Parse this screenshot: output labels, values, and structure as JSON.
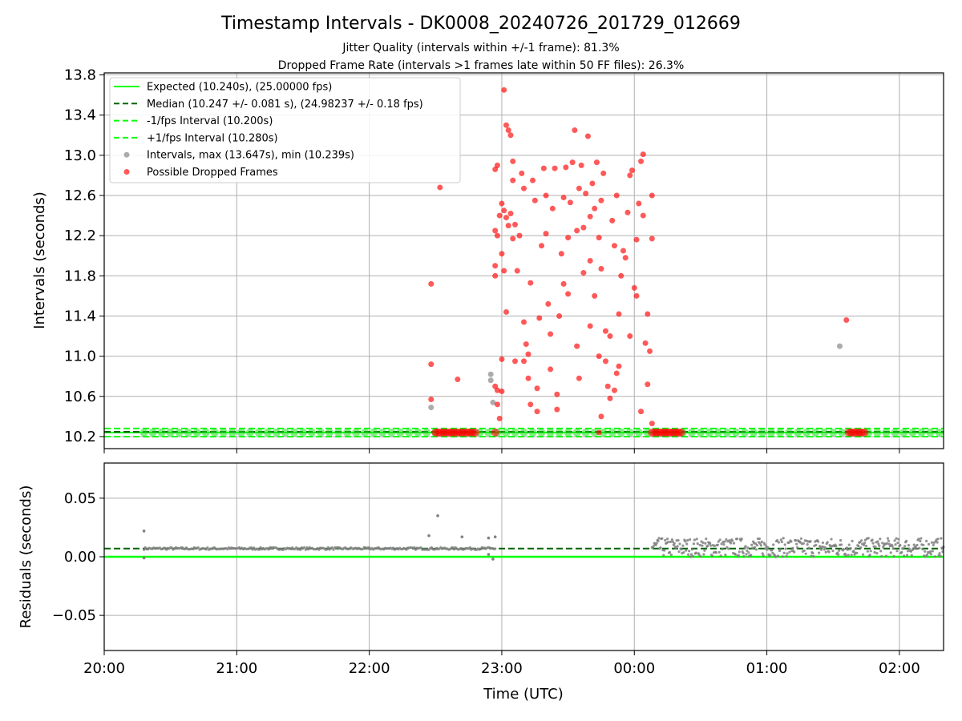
{
  "chart_data": [
    {
      "type": "scatter",
      "title": "Timestamp Intervals - DK0008_20240726_201729_012669",
      "subtitle_lines": [
        "Jitter Quality (intervals within +/-1 frame): 81.3%",
        "Dropped Frame Rate (intervals >1 frames late within 50 FF files): 26.3%"
      ],
      "xlabel": "",
      "ylabel": "Intervals (seconds)",
      "xlim": [
        "20:00",
        "02:20"
      ],
      "ylim": [
        10.08,
        13.82
      ],
      "yticks": [
        10.2,
        10.6,
        11.0,
        11.4,
        11.8,
        12.2,
        12.6,
        13.0,
        13.4,
        13.8
      ],
      "ytick_labels": [
        "10.2",
        "10.6",
        "11.0",
        "11.4",
        "11.8",
        "12.2",
        "12.6",
        "13.0",
        "13.4",
        "13.8"
      ],
      "grid": true,
      "legend_position": "upper-left",
      "series": [
        {
          "name": "Expected (10.240s), (25.00000 fps)",
          "kind": "hline",
          "y": 10.24,
          "style": "solid",
          "color": "#00ff00"
        },
        {
          "name": "Median (10.247 +/- 0.081 s), (24.98237 +/- 0.18 fps)",
          "kind": "hline",
          "y": 10.247,
          "style": "dashed",
          "color": "#006400"
        },
        {
          "name": "-1/fps Interval (10.200s)",
          "kind": "hline",
          "y": 10.2,
          "style": "dashed",
          "color": "#00ff00"
        },
        {
          "name": "+1/fps Interval (10.280s)",
          "kind": "hline",
          "y": 10.28,
          "style": "dashed",
          "color": "#00ff00"
        },
        {
          "name": "Intervals, max (13.647s), min (10.239s)",
          "kind": "scatter",
          "color": "#808080",
          "points": [
            [
              "22:28",
              10.49
            ],
            [
              "22:55",
              10.82
            ],
            [
              "22:55",
              10.76
            ],
            [
              "22:56",
              10.54
            ],
            [
              "01:33",
              11.1
            ]
          ]
        },
        {
          "name": "Possible Dropped Frames",
          "kind": "scatter",
          "color": "#ff0000",
          "points": [
            [
              "22:28",
              11.72
            ],
            [
              "22:28",
              10.92
            ],
            [
              "22:28",
              10.57
            ],
            [
              "22:32",
              12.68
            ],
            [
              "22:40",
              10.77
            ],
            [
              "22:57",
              10.7
            ],
            [
              "22:58",
              10.66
            ],
            [
              "22:58",
              10.52
            ],
            [
              "22:59",
              10.38
            ],
            [
              "23:00",
              10.97
            ],
            [
              "23:00",
              10.65
            ],
            [
              "23:01",
              13.65
            ],
            [
              "23:02",
              13.3
            ],
            [
              "23:03",
              13.25
            ],
            [
              "23:04",
              13.2
            ],
            [
              "23:05",
              12.94
            ],
            [
              "23:05",
              12.75
            ],
            [
              "22:58",
              12.9
            ],
            [
              "22:57",
              12.86
            ],
            [
              "22:57",
              12.25
            ],
            [
              "22:58",
              12.2
            ],
            [
              "22:57",
              11.9
            ],
            [
              "22:57",
              11.8
            ],
            [
              "22:59",
              12.4
            ],
            [
              "23:00",
              12.52
            ],
            [
              "23:01",
              12.45
            ],
            [
              "23:02",
              12.38
            ],
            [
              "23:03",
              12.3
            ],
            [
              "23:04",
              12.42
            ],
            [
              "23:00",
              12.02
            ],
            [
              "23:01",
              11.85
            ],
            [
              "23:02",
              11.44
            ],
            [
              "23:05",
              12.17
            ],
            [
              "23:06",
              12.31
            ],
            [
              "23:07",
              11.85
            ],
            [
              "23:08",
              12.2
            ],
            [
              "23:09",
              12.82
            ],
            [
              "23:10",
              11.34
            ],
            [
              "23:10",
              10.95
            ],
            [
              "23:11",
              11.12
            ],
            [
              "23:12",
              11.02
            ],
            [
              "23:12",
              10.78
            ],
            [
              "23:13",
              11.73
            ],
            [
              "23:14",
              12.75
            ],
            [
              "23:15",
              12.55
            ],
            [
              "23:16",
              10.68
            ],
            [
              "23:16",
              10.45
            ],
            [
              "23:17",
              11.38
            ],
            [
              "23:18",
              12.1
            ],
            [
              "23:19",
              12.87
            ],
            [
              "23:20",
              12.6
            ],
            [
              "23:20",
              12.22
            ],
            [
              "23:21",
              11.52
            ],
            [
              "23:22",
              11.22
            ],
            [
              "23:23",
              12.47
            ],
            [
              "23:24",
              12.87
            ],
            [
              "23:25",
              10.47
            ],
            [
              "23:25",
              10.62
            ],
            [
              "23:26",
              11.4
            ],
            [
              "23:27",
              12.02
            ],
            [
              "23:28",
              11.72
            ],
            [
              "23:28",
              12.58
            ],
            [
              "23:29",
              12.88
            ],
            [
              "23:30",
              12.18
            ],
            [
              "23:31",
              12.53
            ],
            [
              "23:32",
              12.93
            ],
            [
              "23:33",
              13.25
            ],
            [
              "23:34",
              11.1
            ],
            [
              "23:34",
              12.25
            ],
            [
              "23:35",
              12.67
            ],
            [
              "23:36",
              12.9
            ],
            [
              "23:37",
              11.83
            ],
            [
              "23:37",
              12.28
            ],
            [
              "23:38",
              12.62
            ],
            [
              "23:39",
              13.19
            ],
            [
              "23:40",
              11.95
            ],
            [
              "23:40",
              12.39
            ],
            [
              "23:41",
              12.72
            ],
            [
              "23:42",
              11.6
            ],
            [
              "23:42",
              12.47
            ],
            [
              "23:43",
              12.93
            ],
            [
              "23:44",
              12.18
            ],
            [
              "23:45",
              11.87
            ],
            [
              "23:45",
              12.55
            ],
            [
              "23:46",
              12.82
            ],
            [
              "23:47",
              11.25
            ],
            [
              "23:47",
              10.95
            ],
            [
              "23:48",
              10.7
            ],
            [
              "23:49",
              10.58
            ],
            [
              "23:49",
              11.2
            ],
            [
              "23:50",
              12.35
            ],
            [
              "23:51",
              12.1
            ],
            [
              "23:52",
              12.6
            ],
            [
              "23:53",
              11.42
            ],
            [
              "23:54",
              11.8
            ],
            [
              "23:55",
              12.05
            ],
            [
              "23:56",
              11.98
            ],
            [
              "23:57",
              12.43
            ],
            [
              "23:58",
              12.8
            ],
            [
              "23:59",
              12.85
            ],
            [
              "00:00",
              11.68
            ],
            [
              "00:01",
              12.16
            ],
            [
              "00:02",
              12.52
            ],
            [
              "00:03",
              12.94
            ],
            [
              "00:04",
              12.4
            ],
            [
              "00:05",
              11.13
            ],
            [
              "00:06",
              11.42
            ],
            [
              "00:06",
              10.72
            ],
            [
              "00:07",
              11.05
            ],
            [
              "00:08",
              12.6
            ],
            [
              "00:08",
              12.17
            ],
            [
              "00:04",
              13.01
            ],
            [
              "00:03",
              10.45
            ],
            [
              "00:01",
              11.6
            ],
            [
              "23:58",
              11.2
            ],
            [
              "23:44",
              11.0
            ],
            [
              "23:40",
              11.3
            ],
            [
              "23:35",
              10.78
            ],
            [
              "23:30",
              11.62
            ],
            [
              "23:22",
              10.87
            ],
            [
              "23:13",
              10.52
            ],
            [
              "23:06",
              10.95
            ],
            [
              "23:53",
              10.9
            ],
            [
              "23:52",
              10.83
            ],
            [
              "23:51",
              10.66
            ],
            [
              "23:45",
              10.4
            ],
            [
              "00:08",
              10.33
            ],
            [
              "01:36",
              11.36
            ],
            [
              "23:44",
              10.24
            ],
            [
              "23:10",
              12.67
            ]
          ]
        }
      ]
    },
    {
      "type": "scatter",
      "xlabel": "Time (UTC)",
      "ylabel": "Residuals (seconds)",
      "xlim": [
        "20:00",
        "02:20"
      ],
      "ylim": [
        -0.08,
        0.08
      ],
      "yticks": [
        -0.05,
        0.0,
        0.05
      ],
      "ytick_labels": [
        "−0.05",
        "0.00",
        "0.05"
      ],
      "xticks": [
        "20:00",
        "21:00",
        "22:00",
        "23:00",
        "00:00",
        "01:00",
        "02:00"
      ],
      "grid": true,
      "series": [
        {
          "kind": "hline",
          "y": 0.0,
          "style": "solid",
          "color": "#00ff00"
        },
        {
          "kind": "hline",
          "y": 0.007,
          "style": "dashed",
          "color": "#006400"
        },
        {
          "kind": "scatter",
          "color": "#808080",
          "points": [
            [
              "20:18",
              0.022
            ],
            [
              "20:18",
              -0.001
            ],
            [
              "22:27",
              0.018
            ],
            [
              "22:31",
              0.035
            ],
            [
              "22:42",
              0.017
            ],
            [
              "22:54",
              0.016
            ],
            [
              "22:56",
              -0.002
            ],
            [
              "22:57",
              0.017
            ],
            [
              "22:54",
              0.002
            ]
          ]
        },
        {
          "kind": "band",
          "color": "#808080",
          "from": "20:18",
          "to": "22:57",
          "y": 0.007,
          "spread": 0.001
        },
        {
          "kind": "band",
          "color": "#808080",
          "from": "00:08",
          "to": "02:20",
          "y": 0.008,
          "spread": 0.008
        }
      ]
    }
  ]
}
